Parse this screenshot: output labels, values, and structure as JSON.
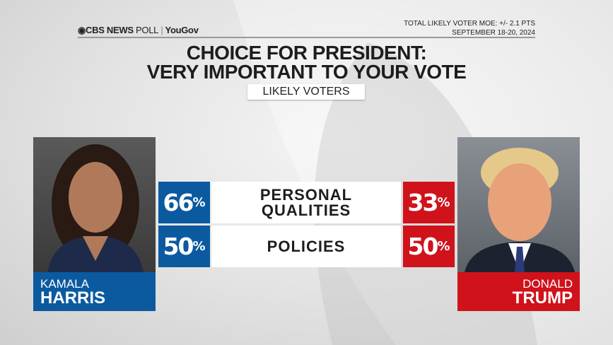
{
  "header": {
    "logo_text": "CBS NEWS",
    "logo_poll": "POLL",
    "logo_partner": "YouGov",
    "moe": "TOTAL LIKELY VOTER MOE: +/- 2.1 PTS",
    "dates": "SEPTEMBER 18-20, 2024"
  },
  "title_line1": "CHOICE FOR PRESIDENT:",
  "title_line2": "VERY IMPORTANT TO YOUR VOTE",
  "subtitle": "LIKELY VOTERS",
  "candidates": [
    {
      "first": "KAMALA",
      "last": "HARRIS",
      "color": "#0b5aa0"
    },
    {
      "first": "DONALD",
      "last": "TRUMP",
      "color": "#d0121b"
    }
  ],
  "chart_data": {
    "type": "table",
    "categories": [
      "PERSONAL QUALITIES",
      "POLICIES"
    ],
    "category_lines": [
      [
        "PERSONAL",
        "QUALITIES"
      ],
      [
        "POLICIES"
      ]
    ],
    "series": [
      {
        "name": "KAMALA HARRIS",
        "values": [
          66,
          50
        ],
        "labels": [
          "66",
          "50"
        ]
      },
      {
        "name": "DONALD TRUMP",
        "values": [
          33,
          50
        ],
        "labels": [
          "33",
          "50"
        ]
      }
    ],
    "unit": "%"
  }
}
